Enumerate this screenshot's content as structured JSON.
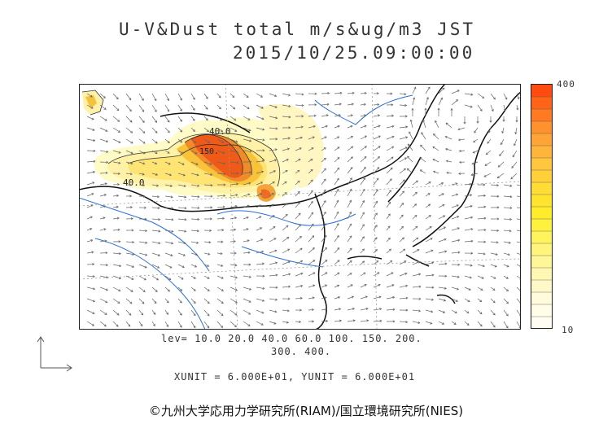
{
  "header": {
    "title_line1": "U-V&Dust total m/s&ug/m3 JST",
    "title_line2": "2015/10/25.09:00:00"
  },
  "map": {
    "contour_labels": [
      "40.0",
      "40.0",
      "150."
    ],
    "colors": {
      "low": "#fff2a8",
      "mid": "#f3c33b",
      "high": "#ef7b22",
      "peak": "#f04a10",
      "coast": "#111111",
      "river": "#2b6fd6",
      "wind": "#666666"
    }
  },
  "colorbar": {
    "max_label": "400",
    "min_label": "10",
    "colors": [
      "#ff4a10",
      "#ff6418",
      "#ff7a22",
      "#ff922c",
      "#ffa436",
      "#ffb43c",
      "#ffc63e",
      "#ffd03a",
      "#ffdc36",
      "#ffe42e",
      "#ffec2a",
      "#fff23e",
      "#fff45e",
      "#fff57c",
      "#fff698",
      "#fff8b2",
      "#fff9c8",
      "#fffbdb",
      "#fffce8",
      "#fffdf2"
    ]
  },
  "levels": {
    "line1": "lev= 10.0 20.0 40.0 60.0 100. 150. 200.",
    "line2": "300. 400."
  },
  "units": "XUNIT = 6.000E+01, YUNIT = 6.000E+01",
  "copyright": "©九州大学応用力学研究所(RIAM)/国立環境研究所(NIES)"
}
